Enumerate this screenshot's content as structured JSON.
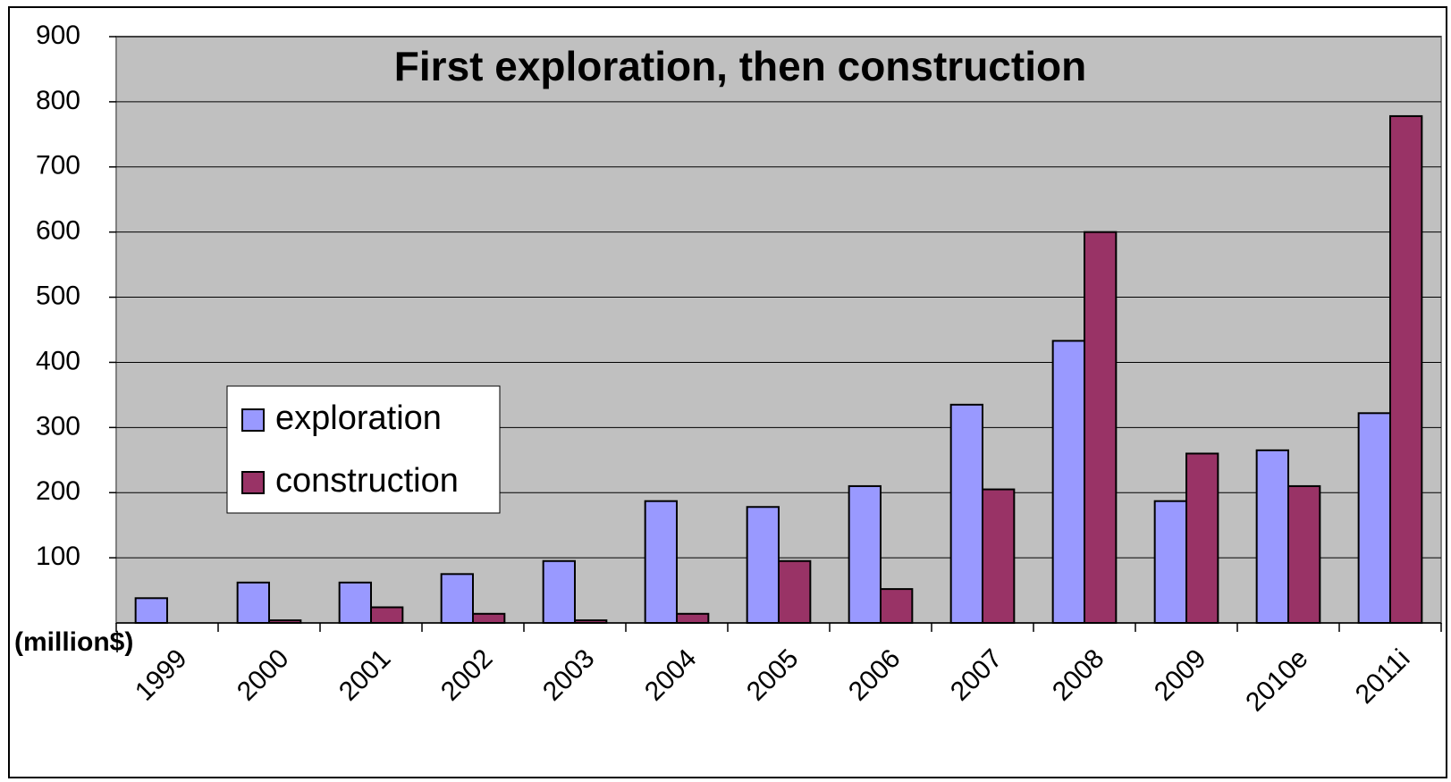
{
  "chart_data": {
    "type": "bar",
    "title": "First exploration, then construction",
    "y_label": "(million$)",
    "categories": [
      "1999",
      "2000",
      "2001",
      "2002",
      "2003",
      "2004",
      "2005",
      "2006",
      "2007",
      "2008",
      "2009",
      "2010e",
      "2011i"
    ],
    "series": [
      {
        "name": "exploration",
        "color": "#9999ff",
        "values": [
          38,
          62,
          62,
          75,
          95,
          187,
          178,
          210,
          335,
          433,
          187,
          265,
          322
        ]
      },
      {
        "name": "construction",
        "color": "#993366",
        "values": [
          0,
          4,
          24,
          14,
          4,
          14,
          95,
          52,
          205,
          600,
          260,
          210,
          778
        ]
      }
    ],
    "ylim": [
      0,
      900
    ],
    "yticks": [
      100,
      200,
      300,
      400,
      500,
      600,
      700,
      800,
      900
    ],
    "grid": true,
    "legend": "left",
    "background": "#c0c0c0"
  }
}
